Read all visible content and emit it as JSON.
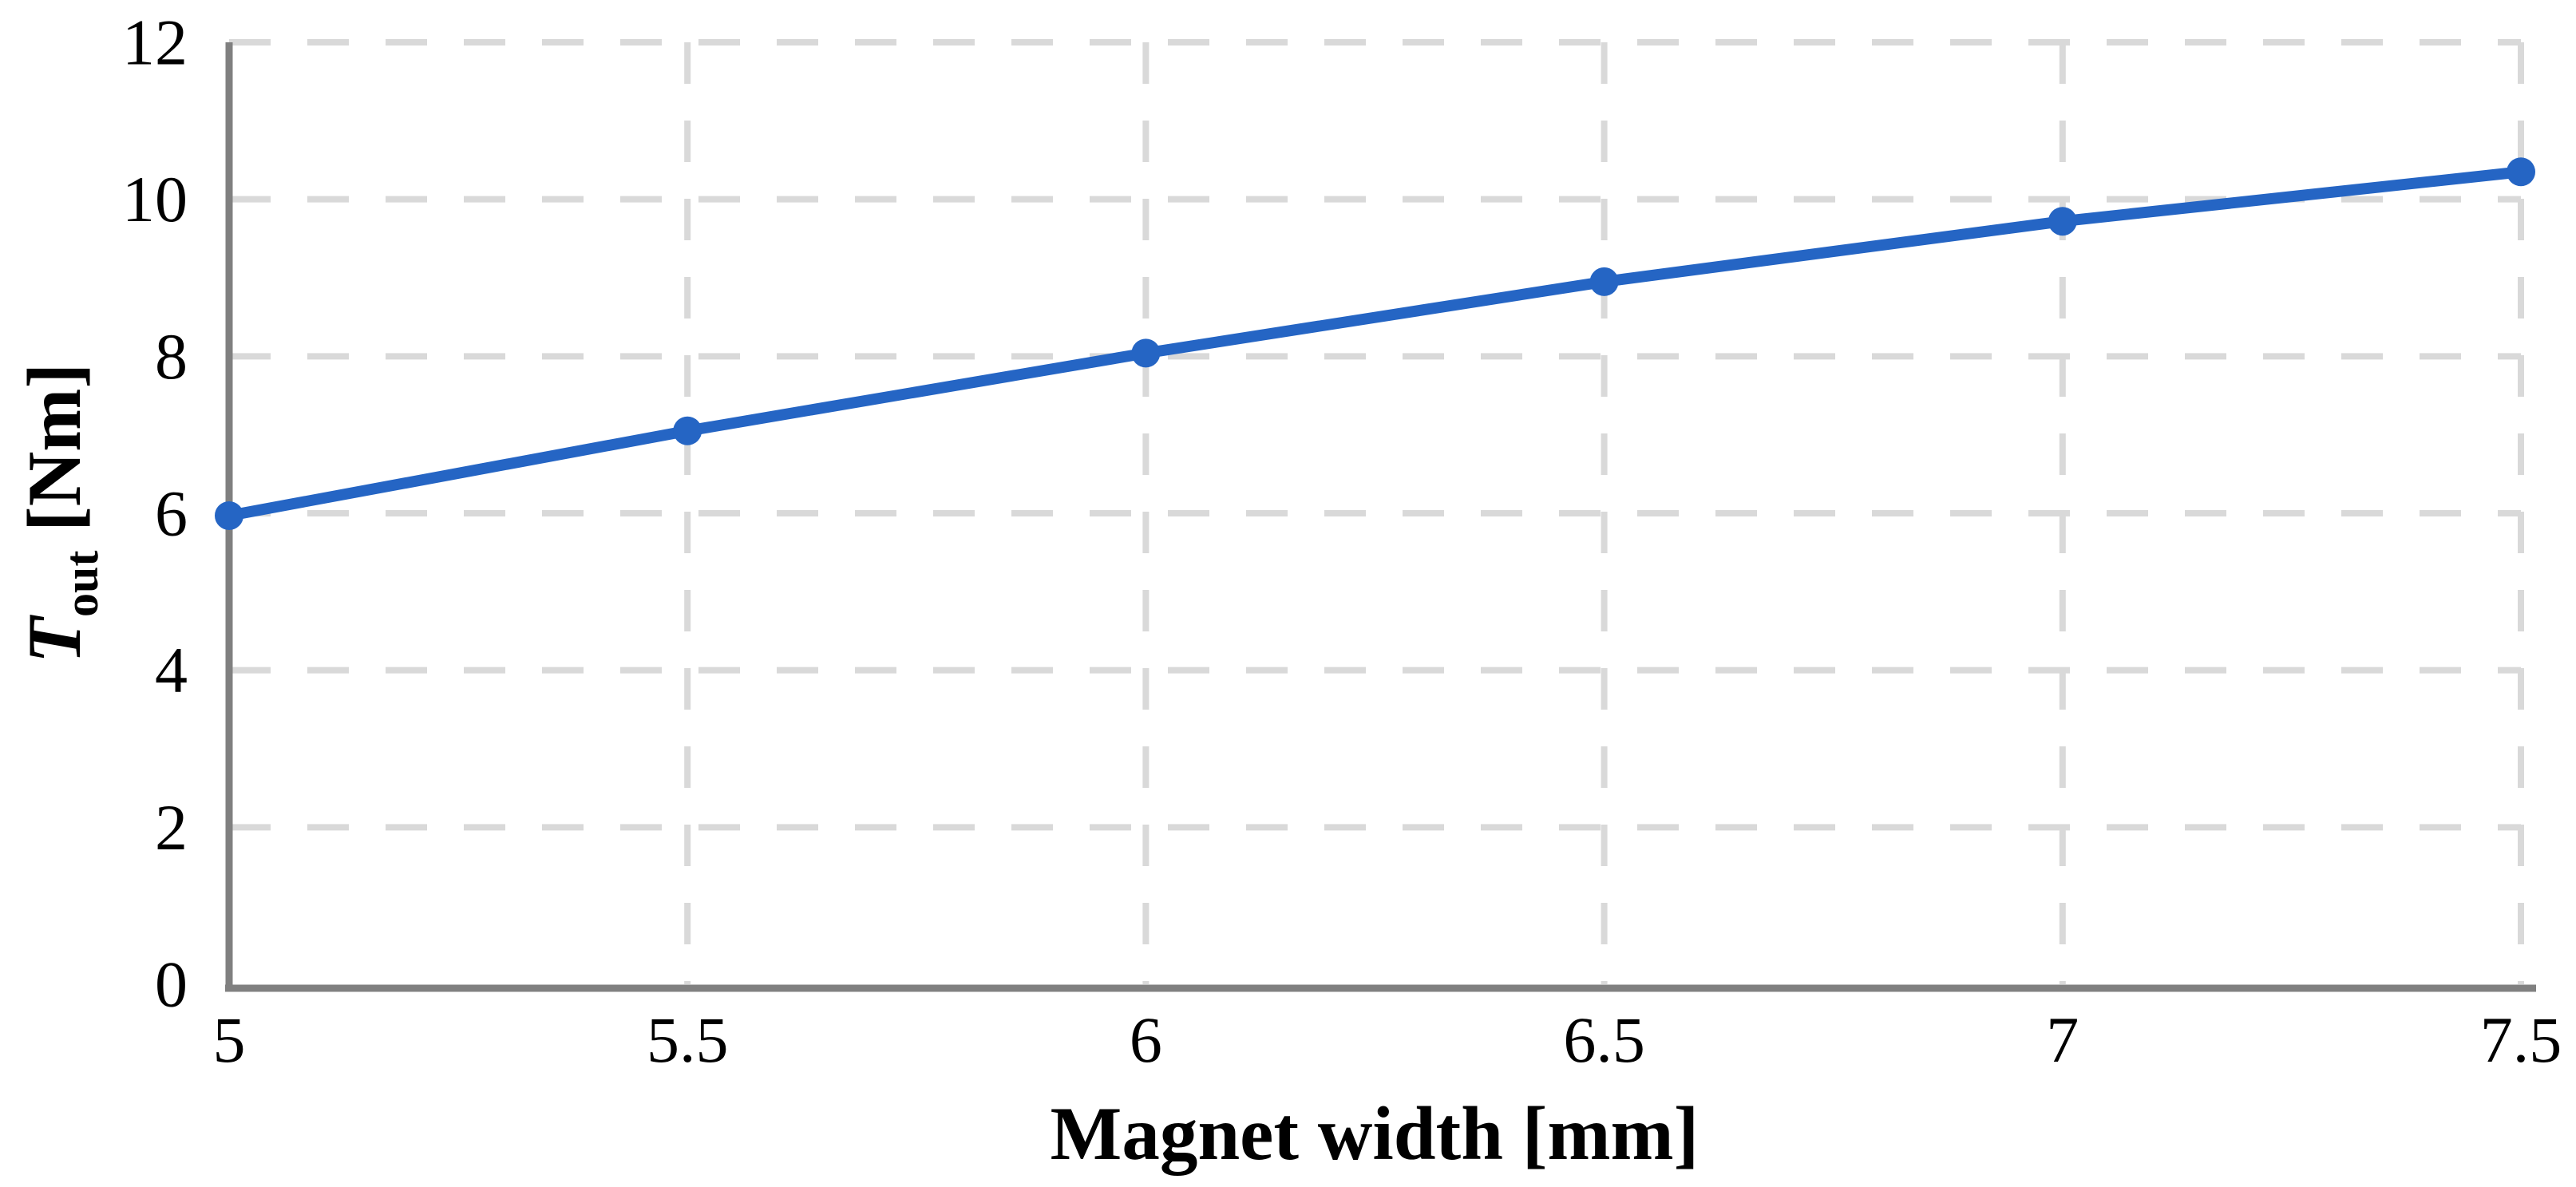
{
  "figure": {
    "background_color": "#ffffff",
    "kind": "line-chart-figure"
  },
  "chart_data": {
    "type": "line",
    "title": "",
    "xlabel": "Magnet width [mm]",
    "ylabel": "Tout [Nm]",
    "ylabel_parts": {
      "symbol": "T",
      "subscript": "out",
      "unit": " [Nm]"
    },
    "x": [
      5,
      5.5,
      6,
      6.5,
      7,
      7.5
    ],
    "series": [
      {
        "name": "Tout",
        "values": [
          5.97,
          7.05,
          8.04,
          8.95,
          9.72,
          10.35
        ],
        "color": "#2565C4",
        "marker": "circle"
      }
    ],
    "xticks": [
      5,
      5.5,
      6,
      6.5,
      7,
      7.5
    ],
    "xtick_labels": [
      "5",
      "5.5",
      "6",
      "6.5",
      "7",
      "7.5"
    ],
    "yticks": [
      0,
      2,
      4,
      6,
      8,
      10,
      12
    ],
    "ytick_labels": [
      "0",
      "2",
      "4",
      "6",
      "8",
      "10",
      "12"
    ],
    "xlim": [
      5,
      7.5
    ],
    "ylim": [
      0,
      12
    ],
    "grid": "dashed",
    "legend": "none",
    "colors": {
      "line": "#2565C4",
      "gridline": "#D9D9D9",
      "axis": "#808080",
      "text": "#000000"
    }
  }
}
